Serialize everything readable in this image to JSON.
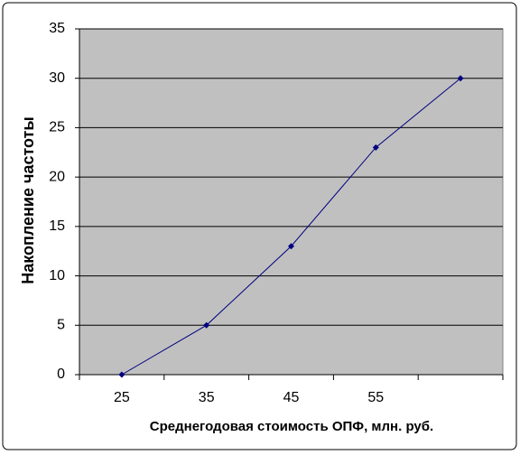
{
  "chart_data": {
    "type": "line",
    "x_label": "Среднегодовая стоимость ОПФ, млн. руб.",
    "y_label": "Накопление частоты",
    "categories": [
      "25",
      "35",
      "45",
      "55",
      null
    ],
    "series": [
      {
        "name": "Накопление частоты",
        "color": "#000080",
        "values": [
          0,
          5,
          13,
          23,
          30
        ]
      }
    ],
    "ylim": [
      0,
      35
    ],
    "yticks": [
      0,
      5,
      10,
      15,
      20,
      25,
      30,
      35
    ],
    "grid": true,
    "plot_background": "#c0c0c0"
  }
}
